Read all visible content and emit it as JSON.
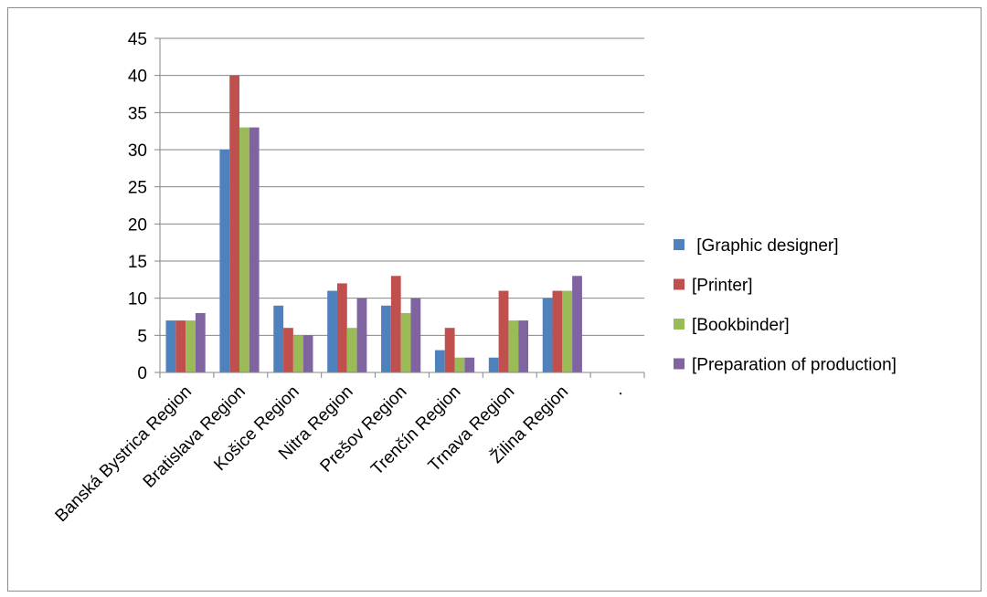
{
  "chart_data": {
    "type": "bar",
    "categories": [
      "Banská Bystrica Region",
      "Bratislava Region",
      "Košice Region",
      "Nitra Region",
      "Prešov Region",
      "Trenčín Region",
      "Trnava Region",
      "Žilina Region",
      "."
    ],
    "series": [
      {
        "name": " [Graphic designer]",
        "color": "#4f81bd",
        "values": [
          7,
          30,
          9,
          11,
          9,
          3,
          2,
          10,
          null
        ]
      },
      {
        "name": "[Printer]",
        "color": "#c0504d",
        "values": [
          7,
          40,
          6,
          12,
          13,
          6,
          11,
          11,
          null
        ]
      },
      {
        "name": "[Bookbinder]",
        "color": "#9bbb59",
        "values": [
          7,
          33,
          5,
          6,
          8,
          2,
          7,
          11,
          null
        ]
      },
      {
        "name": "[Preparation of production]",
        "color": "#8064a2",
        "values": [
          8,
          33,
          5,
          10,
          10,
          2,
          7,
          13,
          null
        ]
      }
    ],
    "ylim": [
      0,
      45
    ],
    "yticks": [
      "0",
      "5",
      "10",
      "15",
      "20",
      "25",
      "30",
      "35",
      "40",
      "45"
    ],
    "grid": true,
    "legend": "right",
    "colors": {
      "grid": "#868686",
      "axis": "#868686"
    }
  }
}
